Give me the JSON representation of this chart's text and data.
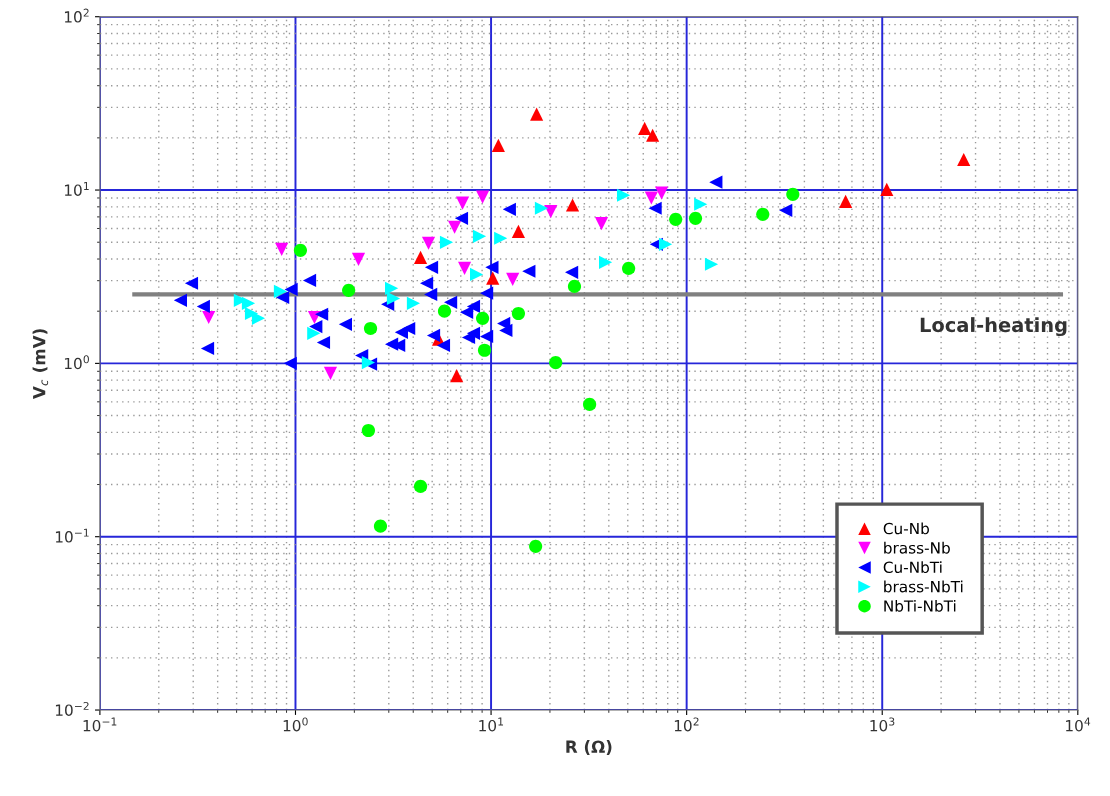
{
  "chart_data": {
    "type": "scatter",
    "xlabel": "R (Ω)",
    "ylabel": "V$_{c}$ (mV)",
    "log": "xy",
    "grid": true,
    "legend": "bottom right",
    "xlim": [
      0.1,
      10000
    ],
    "ylim": [
      0.01,
      100
    ],
    "xticks": [
      {
        "value": 0.1,
        "label": "10$^{−1}$"
      },
      {
        "value": 1,
        "label": "10$^{0}$"
      },
      {
        "value": 10,
        "label": "10$^{1}$"
      },
      {
        "value": 100,
        "label": "10$^{2}$"
      },
      {
        "value": 1000,
        "label": "10$^{3}$"
      },
      {
        "value": 10000,
        "label": "10$^{4}$"
      }
    ],
    "yticks": [
      {
        "value": 0.01,
        "label": "10$^{−2}$"
      },
      {
        "value": 0.1,
        "label": "10$^{−1}$"
      },
      {
        "value": 1,
        "label": "10$^{0}$"
      },
      {
        "value": 10,
        "label": "10$^{1}$"
      },
      {
        "value": 100,
        "label": "10$^{2}$"
      }
    ],
    "annotations": [
      "Local-heating"
    ],
    "series": [
      {
        "type": "line",
        "color": "#808080",
        "marker": "none",
        "line_style": "solid",
        "x": [
          0.15,
          8200
        ],
        "values": [
          2.5,
          2.5
        ]
      },
      {
        "name": "Cu-Nb",
        "color": "#ff0000",
        "marker": "triangle-up",
        "x": [
          4.36,
          5.39,
          6.67,
          10.2,
          13.8,
          10.9,
          17.1,
          26.1,
          61,
          67,
          650,
          1055,
          2610
        ],
        "values": [
          4.09,
          1.38,
          0.85,
          3.1,
          5.78,
          18.1,
          27.4,
          8.2,
          22.7,
          20.7,
          8.6,
          10.1,
          15.0
        ]
      },
      {
        "name": "brass-Nb",
        "color": "#ff00ff",
        "marker": "triangle-down",
        "x": [
          0.85,
          2.1,
          0.36,
          1.25,
          1.51,
          4.79,
          6.51,
          7.15,
          9.05,
          7.32,
          12.9,
          20.2,
          36.7,
          66,
          74.5
        ],
        "values": [
          4.55,
          3.98,
          1.84,
          1.84,
          0.875,
          4.93,
          6.1,
          8.4,
          9.1,
          3.53,
          3.05,
          7.5,
          6.4,
          9.0,
          9.6
        ]
      },
      {
        "name": "Cu-NbTi",
        "color": "#0000ff",
        "marker": "triangle-left",
        "x": [
          0.258,
          0.294,
          0.338,
          0.355,
          0.86,
          0.95,
          0.94,
          1.18,
          1.27,
          1.36,
          1.39,
          1.8,
          2.18,
          2.42,
          2.96,
          3.1,
          3.37,
          3.48,
          3.79,
          4.68,
          4.91,
          4.96,
          5.08,
          5.71,
          6.21,
          7.06,
          7.5,
          8.13,
          7.67,
          8.13,
          9.49,
          9.49,
          10.1,
          11.6,
          11.9,
          12.4,
          15.6,
          25.8,
          69,
          70,
          141,
          321
        ],
        "values": [
          2.31,
          2.9,
          2.13,
          1.22,
          2.4,
          2.67,
          1.0,
          3.01,
          1.63,
          1.92,
          1.32,
          1.68,
          1.11,
          0.99,
          2.19,
          1.29,
          1.27,
          1.51,
          1.59,
          2.9,
          2.5,
          3.58,
          1.45,
          1.27,
          2.25,
          6.87,
          1.97,
          2.13,
          1.41,
          1.49,
          1.43,
          2.54,
          3.58,
          1.7,
          1.55,
          7.74,
          3.4,
          3.35,
          7.85,
          4.86,
          11.1,
          7.64
        ]
      },
      {
        "name": "brass-NbTi",
        "color": "#00ffff",
        "marker": "triangle-right",
        "x": [
          0.523,
          0.575,
          0.596,
          0.647,
          0.838,
          1.24,
          2.36,
          3.1,
          3.17,
          4.01,
          5.92,
          8.73,
          11.2,
          8.43,
          18.1,
          47.6,
          118,
          78,
          38.5,
          134
        ],
        "values": [
          2.31,
          2.22,
          1.94,
          1.82,
          2.6,
          1.49,
          1.01,
          2.71,
          2.37,
          2.22,
          4.99,
          5.41,
          5.27,
          3.26,
          7.85,
          9.33,
          8.28,
          4.86,
          3.83,
          3.73
        ]
      },
      {
        "name": "NbTi-NbTi",
        "color": "#00ff00",
        "marker": "circle",
        "x": [
          1.06,
          1.87,
          2.42,
          5.78,
          9.05,
          13.8,
          9.26,
          21.4,
          26.7,
          50.5,
          87.9,
          111,
          245,
          349,
          31.9,
          2.36,
          4.36,
          2.72,
          16.9
        ],
        "values": [
          4.49,
          2.64,
          1.59,
          2.0,
          1.82,
          1.94,
          1.19,
          1.01,
          2.78,
          3.53,
          6.78,
          6.87,
          7.24,
          9.45,
          0.58,
          0.41,
          0.195,
          0.115,
          0.088
        ]
      }
    ]
  }
}
